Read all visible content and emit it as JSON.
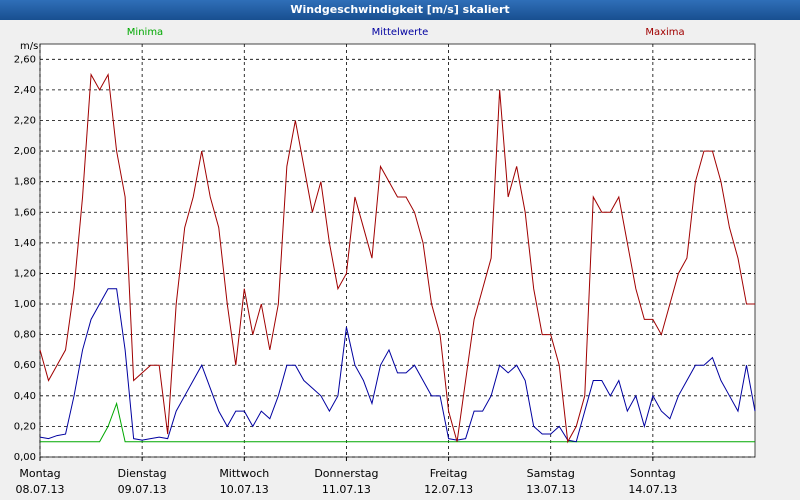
{
  "chart_data": {
    "type": "line",
    "title": "Windgeschwindigkeit [m/s] skaliert",
    "y_label": "m/s",
    "x": [
      0,
      2,
      4,
      6,
      8,
      10,
      12,
      14,
      16,
      18,
      20,
      22,
      24,
      26,
      28,
      30,
      32,
      34,
      36,
      38,
      40,
      42,
      44,
      46,
      48,
      50,
      52,
      54,
      56,
      58,
      60,
      62,
      64,
      66,
      68,
      70,
      72,
      74,
      76,
      78,
      80,
      82,
      84,
      86,
      88,
      90,
      92,
      94,
      96,
      98,
      100,
      102,
      104,
      106,
      108,
      110,
      112,
      114,
      116,
      118,
      120,
      122,
      124,
      126,
      128,
      130,
      132,
      134,
      136,
      138,
      140,
      142,
      144,
      146,
      148,
      150,
      152,
      154,
      156,
      158,
      160,
      162,
      164,
      166,
      168
    ],
    "xlim": [
      0,
      168
    ],
    "xticks": [
      {
        "value": 0,
        "label": "Montag",
        "date": "08.07.13"
      },
      {
        "value": 24,
        "label": "Dienstag",
        "date": "09.07.13"
      },
      {
        "value": 48,
        "label": "Mittwoch",
        "date": "10.07.13"
      },
      {
        "value": 72,
        "label": "Donnerstag",
        "date": "11.07.13"
      },
      {
        "value": 96,
        "label": "Freitag",
        "date": "12.07.13"
      },
      {
        "value": 120,
        "label": "Samstag",
        "date": "13.07.13"
      },
      {
        "value": 144,
        "label": "Sonntag",
        "date": "14.07.13"
      }
    ],
    "ylim": [
      0,
      2.7
    ],
    "yticks": [
      {
        "value": 0,
        "label": "0,00"
      },
      {
        "value": 0.2,
        "label": "0,20"
      },
      {
        "value": 0.4,
        "label": "0,40"
      },
      {
        "value": 0.6,
        "label": "0,60"
      },
      {
        "value": 0.8,
        "label": "0,80"
      },
      {
        "value": 1.0,
        "label": "1,00"
      },
      {
        "value": 1.2,
        "label": "1,20"
      },
      {
        "value": 1.4,
        "label": "1,40"
      },
      {
        "value": 1.6,
        "label": "1,60"
      },
      {
        "value": 1.8,
        "label": "1,80"
      },
      {
        "value": 2.0,
        "label": "2,00"
      },
      {
        "value": 2.2,
        "label": "2,20"
      },
      {
        "value": 2.4,
        "label": "2,40"
      },
      {
        "value": 2.6,
        "label": "2,60"
      }
    ],
    "grid": true,
    "series": [
      {
        "name": "Minima",
        "color": "#00a800",
        "values": [
          0.1,
          0.1,
          0.1,
          0.1,
          0.1,
          0.1,
          0.1,
          0.1,
          0.2,
          0.35,
          0.1,
          0.1,
          0.1,
          0.1,
          0.1,
          0.1,
          0.1,
          0.1,
          0.1,
          0.1,
          0.1,
          0.1,
          0.1,
          0.1,
          0.1,
          0.1,
          0.1,
          0.1,
          0.1,
          0.1,
          0.1,
          0.1,
          0.1,
          0.1,
          0.1,
          0.1,
          0.1,
          0.1,
          0.1,
          0.1,
          0.1,
          0.1,
          0.1,
          0.1,
          0.1,
          0.1,
          0.1,
          0.1,
          0.1,
          0.1,
          0.1,
          0.1,
          0.1,
          0.1,
          0.1,
          0.1,
          0.1,
          0.1,
          0.1,
          0.1,
          0.1,
          0.1,
          0.1,
          0.1,
          0.1,
          0.1,
          0.1,
          0.1,
          0.1,
          0.1,
          0.1,
          0.1,
          0.1,
          0.1,
          0.1,
          0.1,
          0.1,
          0.1,
          0.1,
          0.1,
          0.1,
          0.1,
          0.1,
          0.1,
          0.1
        ]
      },
      {
        "name": "Mittelwerte",
        "color": "#0000a0",
        "values": [
          0.13,
          0.12,
          0.14,
          0.15,
          0.4,
          0.7,
          0.9,
          1.0,
          1.1,
          1.1,
          0.7,
          0.12,
          0.11,
          0.12,
          0.13,
          0.12,
          0.3,
          0.4,
          0.5,
          0.6,
          0.45,
          0.3,
          0.2,
          0.3,
          0.3,
          0.2,
          0.3,
          0.25,
          0.4,
          0.6,
          0.6,
          0.5,
          0.45,
          0.4,
          0.3,
          0.4,
          0.85,
          0.6,
          0.5,
          0.35,
          0.6,
          0.7,
          0.55,
          0.55,
          0.6,
          0.5,
          0.4,
          0.4,
          0.12,
          0.11,
          0.12,
          0.3,
          0.3,
          0.4,
          0.6,
          0.55,
          0.6,
          0.5,
          0.2,
          0.15,
          0.15,
          0.2,
          0.11,
          0.1,
          0.3,
          0.5,
          0.5,
          0.4,
          0.5,
          0.3,
          0.4,
          0.2,
          0.4,
          0.3,
          0.25,
          0.4,
          0.5,
          0.6,
          0.6,
          0.65,
          0.5,
          0.4,
          0.3,
          0.6,
          0.3
        ]
      },
      {
        "name": "Maxima",
        "color": "#a00000",
        "values": [
          0.7,
          0.5,
          0.6,
          0.7,
          1.1,
          1.7,
          2.5,
          2.4,
          2.5,
          2.0,
          1.7,
          0.5,
          0.55,
          0.6,
          0.6,
          0.15,
          1.0,
          1.5,
          1.7,
          2.0,
          1.7,
          1.5,
          1.0,
          0.6,
          1.1,
          0.8,
          1.0,
          0.7,
          1.0,
          1.9,
          2.2,
          1.9,
          1.6,
          1.8,
          1.4,
          1.1,
          1.2,
          1.7,
          1.5,
          1.3,
          1.9,
          1.8,
          1.7,
          1.7,
          1.6,
          1.4,
          1.0,
          0.8,
          0.3,
          0.1,
          0.5,
          0.9,
          1.1,
          1.3,
          2.4,
          1.7,
          1.9,
          1.6,
          1.1,
          0.8,
          0.8,
          0.6,
          0.1,
          0.2,
          0.4,
          1.7,
          1.6,
          1.6,
          1.7,
          1.4,
          1.1,
          0.9,
          0.9,
          0.8,
          1.0,
          1.2,
          1.3,
          1.8,
          2.0,
          2.0,
          1.8,
          1.5,
          1.3,
          1.0,
          1.0
        ]
      }
    ]
  }
}
